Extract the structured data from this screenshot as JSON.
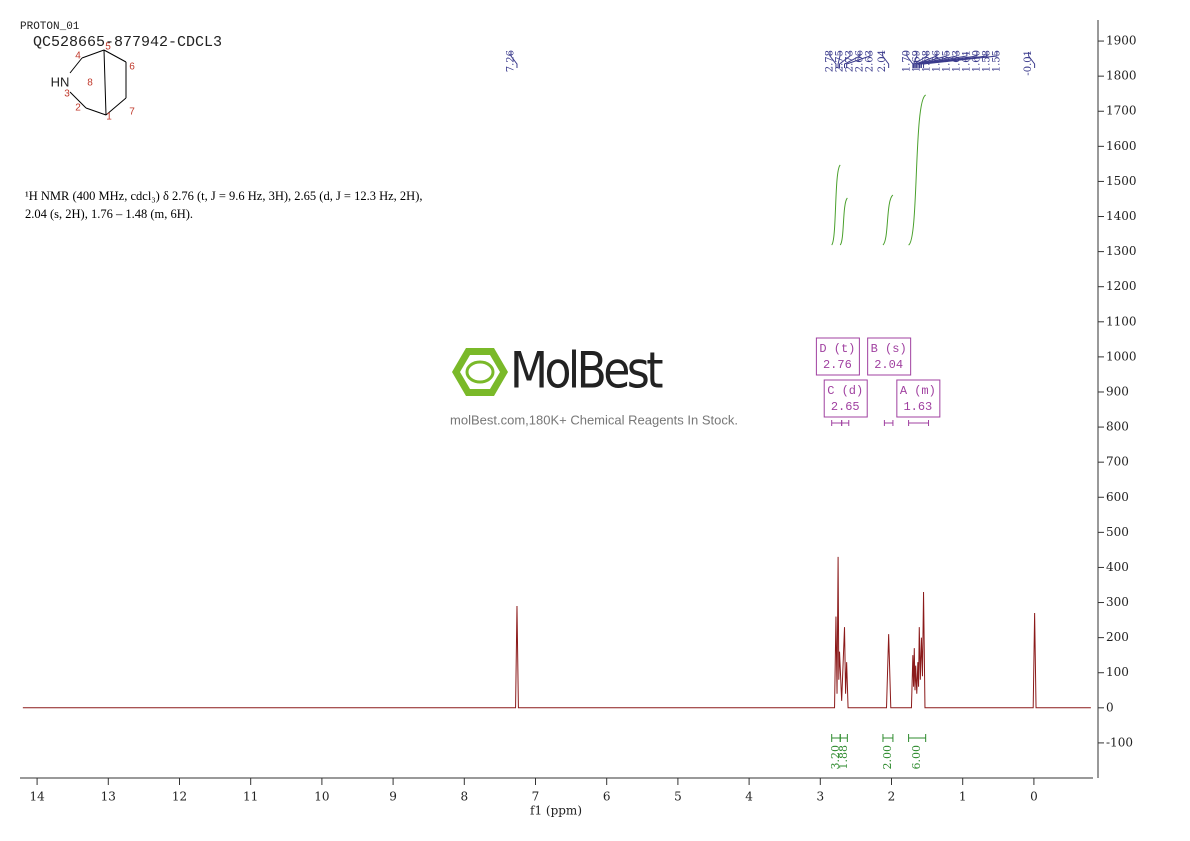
{
  "chart_data": {
    "type": "line",
    "subtitle": "PROTON_01",
    "title": "QC528665-877942-CDCL3",
    "x_label": "f1 (ppm)",
    "description": [
      "¹H NMR (400 MHz, cdcl₃) δ 2.76 (t, J = 9.6 Hz, 3H), 2.65 (d, J = 12.3 Hz, 2H),",
      "2.04 (s, 2H), 1.76 – 1.48 (m, 6H)."
    ],
    "watermark": {
      "logo": "MolBest",
      "tagline": "molBest.com,180K+ Chemical Reagents In Stock."
    },
    "structure": {
      "hetero": "HN",
      "numbers": [
        1,
        2,
        3,
        4,
        5,
        6,
        7,
        8
      ]
    },
    "color": "#8b1a1a",
    "x": [
      14.2,
      7.28,
      7.26,
      7.24,
      2.8,
      2.78,
      2.765,
      2.75,
      2.74,
      2.73,
      2.7,
      2.66,
      2.645,
      2.63,
      2.61,
      2.07,
      2.04,
      2.01,
      1.72,
      1.7,
      1.69,
      1.68,
      1.67,
      1.66,
      1.645,
      1.63,
      1.62,
      1.61,
      1.595,
      1.58,
      1.565,
      1.55,
      1.53,
      0.01,
      -0.01,
      -0.03,
      -0.8
    ],
    "values": [
      0,
      0,
      290,
      0,
      0,
      260,
      40,
      430,
      80,
      160,
      20,
      230,
      40,
      130,
      0,
      0,
      210,
      0,
      0,
      150,
      60,
      170,
      50,
      120,
      40,
      130,
      60,
      230,
      80,
      200,
      90,
      330,
      0,
      0,
      270,
      0,
      0
    ],
    "peaks": [
      7.26,
      2.78,
      2.75,
      2.73,
      2.66,
      2.63,
      2.04,
      1.7,
      1.69,
      1.68,
      1.66,
      1.65,
      1.63,
      1.61,
      1.6,
      1.58,
      1.55,
      -0.01
    ],
    "peak_labels": [
      "7.26",
      "2.78",
      "2.75",
      "2.73",
      "2.66",
      "2.63",
      "2.04",
      "1.70",
      "1.69",
      "1.68",
      "1.66",
      "1.65",
      "1.63",
      "1.61",
      "1.60",
      "1.58",
      "1.55",
      "-0.01"
    ],
    "multiplets": [
      {
        "name": "D (t)",
        "shift": 2.76,
        "range": [
          2.84,
          2.7
        ]
      },
      {
        "name": "C (d)",
        "shift": 2.65,
        "range": [
          2.7,
          2.6
        ]
      },
      {
        "name": "B (s)",
        "shift": 2.04,
        "range": [
          2.1,
          1.98
        ]
      },
      {
        "name": "A (m)",
        "shift": 1.63,
        "range": [
          1.76,
          1.48
        ]
      }
    ],
    "integrals": {
      "values": [
        3.2,
        1.88,
        2,
        6
      ],
      "value_labels": [
        "3.20",
        "1.88",
        "2.00",
        "6.00"
      ],
      "ranges": [
        [
          2.84,
          2.72
        ],
        [
          2.72,
          2.62
        ],
        [
          2.12,
          1.98
        ],
        [
          1.76,
          1.52
        ]
      ]
    },
    "xlim": [
      14.24,
      -0.83
    ],
    "xticks": [
      14,
      13,
      12,
      11,
      10,
      9,
      8,
      7,
      6,
      5,
      4,
      3,
      2,
      1,
      0
    ],
    "ylim": [
      -200,
      1960
    ],
    "yticks": [
      -100,
      0,
      100,
      200,
      300,
      400,
      500,
      600,
      700,
      800,
      900,
      1000,
      1100,
      1200,
      1300,
      1400,
      1500,
      1600,
      1700,
      1800,
      1900
    ]
  }
}
